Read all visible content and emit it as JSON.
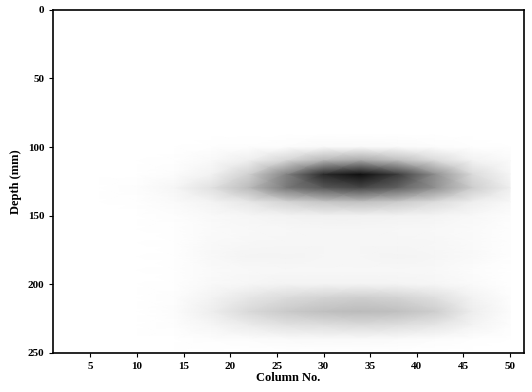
{
  "chart_data": {
    "type": "heatmap",
    "xlabel": "Column No.",
    "ylabel": "Depth (mm)",
    "xlim": [
      1,
      51.5
    ],
    "ylim": [
      250,
      0
    ],
    "xticks": [
      5,
      10,
      15,
      20,
      25,
      30,
      35,
      40,
      45,
      50
    ],
    "yticks": [
      0,
      50,
      100,
      150,
      200,
      250
    ],
    "color": "Greys",
    "color_range": [
      0,
      100
    ],
    "x": [
      2,
      6,
      10,
      14,
      18,
      22,
      26,
      30,
      34,
      38,
      42,
      46,
      50
    ],
    "y": [
      0,
      10,
      20,
      30,
      40,
      50,
      60,
      70,
      80,
      90,
      100,
      110,
      120,
      130,
      140,
      150,
      160,
      170,
      180,
      190,
      200,
      210,
      220,
      230,
      240,
      250
    ],
    "cells": [
      [
        0,
        0,
        0,
        0,
        0,
        0,
        0,
        0,
        0,
        0,
        0,
        0,
        0
      ],
      [
        0,
        0,
        0,
        0,
        0,
        0,
        0,
        0,
        0,
        0,
        0,
        0,
        0
      ],
      [
        0,
        0,
        0,
        0,
        0,
        0,
        0,
        0,
        0,
        0,
        0,
        0,
        0
      ],
      [
        0,
        0,
        0,
        0,
        0,
        0,
        0,
        0,
        0,
        0,
        0,
        0,
        0
      ],
      [
        0,
        0,
        0,
        0,
        0,
        0,
        0,
        0,
        0,
        0,
        0,
        0,
        0
      ],
      [
        0,
        0,
        0,
        0,
        0,
        0,
        0,
        0,
        0,
        0,
        0,
        0,
        0
      ],
      [
        0,
        0,
        0,
        0,
        0,
        0,
        0,
        0,
        0,
        0,
        0,
        0,
        0
      ],
      [
        0,
        0,
        0,
        0,
        0,
        0,
        0,
        0,
        0,
        0,
        0,
        0,
        0
      ],
      [
        0,
        0,
        0,
        0,
        0,
        0,
        0,
        0,
        0,
        0,
        0,
        0,
        0
      ],
      [
        0,
        0,
        0,
        0,
        0,
        0,
        0,
        0,
        0,
        0,
        0,
        0,
        0
      ],
      [
        0,
        0,
        0,
        0,
        1,
        2,
        3,
        5,
        5,
        4,
        3,
        1,
        0
      ],
      [
        0,
        0,
        0,
        1,
        5,
        14,
        27,
        41,
        45,
        38,
        25,
        11,
        4
      ],
      [
        0,
        0,
        0,
        3,
        11,
        29,
        57,
        86,
        95,
        81,
        52,
        24,
        8
      ],
      [
        0,
        0,
        2,
        8,
        21,
        38,
        60,
        72,
        77,
        68,
        51,
        30,
        13
      ],
      [
        0,
        0,
        1,
        4,
        10,
        18,
        28,
        34,
        36,
        32,
        24,
        14,
        6
      ],
      [
        0,
        0,
        0,
        2,
        5,
        8,
        10,
        12,
        12,
        11,
        9,
        6,
        2
      ],
      [
        0,
        0,
        0,
        1,
        4,
        6,
        7,
        8,
        8,
        7,
        6,
        4,
        1
      ],
      [
        0,
        0,
        0,
        1,
        5,
        7,
        8,
        8,
        8,
        8,
        7,
        4,
        1
      ],
      [
        0,
        0,
        0,
        1,
        6,
        9,
        9,
        8,
        8,
        9,
        8,
        5,
        1
      ],
      [
        0,
        0,
        0,
        1,
        4,
        6,
        7,
        7,
        7,
        7,
        6,
        3,
        0
      ],
      [
        0,
        0,
        0,
        1,
        5,
        8,
        10,
        10,
        10,
        9,
        8,
        4,
        0
      ],
      [
        0,
        0,
        0,
        2,
        10,
        18,
        24,
        28,
        30,
        28,
        22,
        10,
        2
      ],
      [
        0,
        0,
        0,
        3,
        14,
        25,
        32,
        36,
        38,
        36,
        30,
        14,
        3
      ],
      [
        0,
        0,
        0,
        2,
        8,
        15,
        20,
        22,
        24,
        22,
        18,
        9,
        2
      ],
      [
        0,
        0,
        0,
        0,
        2,
        3,
        4,
        5,
        5,
        4,
        3,
        1,
        0
      ],
      [
        0,
        0,
        0,
        0,
        0,
        0,
        0,
        0,
        0,
        0,
        0,
        0,
        0
      ]
    ]
  }
}
